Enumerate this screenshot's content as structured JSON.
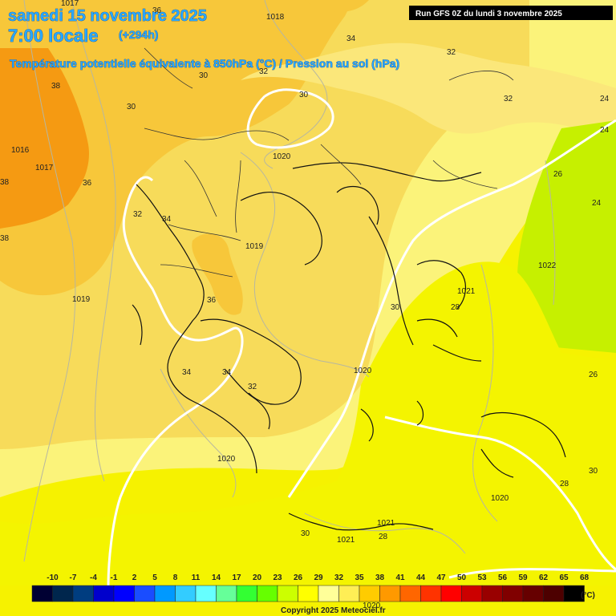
{
  "header": {
    "date_line": "samedi 15 novembre 2025",
    "time_line": "7:00 locale",
    "lead_time": "(+294h)",
    "parameter_line": "Température potentielle équivalente à 850hPa (°C) / Pression au sol (hPa)",
    "run_info": "Run GFS 0Z du lundi 3 novembre 2025"
  },
  "legend": {
    "unit": "(°C)",
    "ticks": [
      "-10",
      "-7",
      "-4",
      "-1",
      "2",
      "5",
      "8",
      "11",
      "14",
      "17",
      "20",
      "23",
      "26",
      "29",
      "32",
      "35",
      "38",
      "41",
      "44",
      "47",
      "50",
      "53",
      "56",
      "59",
      "62",
      "65",
      "68"
    ],
    "colors": [
      "#000033",
      "#00264d",
      "#003d80",
      "#0000cc",
      "#0000ff",
      "#1a4dff",
      "#0099ff",
      "#33ccff",
      "#66ffff",
      "#66ff99",
      "#33ff33",
      "#66ff00",
      "#ccff00",
      "#ffff00",
      "#ffff99",
      "#ffee55",
      "#ffcc00",
      "#ff9900",
      "#ff6600",
      "#ff3300",
      "#ff0000",
      "#cc0000",
      "#990000",
      "#800000",
      "#660000",
      "#4d0000",
      "#000000"
    ]
  },
  "isobar_labels": [
    "1017",
    "1018",
    "1016",
    "1017",
    "1019",
    "1019",
    "1020",
    "1020",
    "1020",
    "1022",
    "1021",
    "1020",
    "1021",
    "1021",
    "1020"
  ],
  "temp_labels": [
    "36",
    "34",
    "32",
    "30",
    "30",
    "30",
    "32",
    "32",
    "24",
    "24",
    "26",
    "24",
    "38",
    "36",
    "32",
    "34",
    "36",
    "34",
    "34",
    "32",
    "30",
    "28",
    "26",
    "28",
    "30",
    "30",
    "28",
    "38",
    "38"
  ],
  "copyright": "Copyright 2025 Meteociel.fr"
}
